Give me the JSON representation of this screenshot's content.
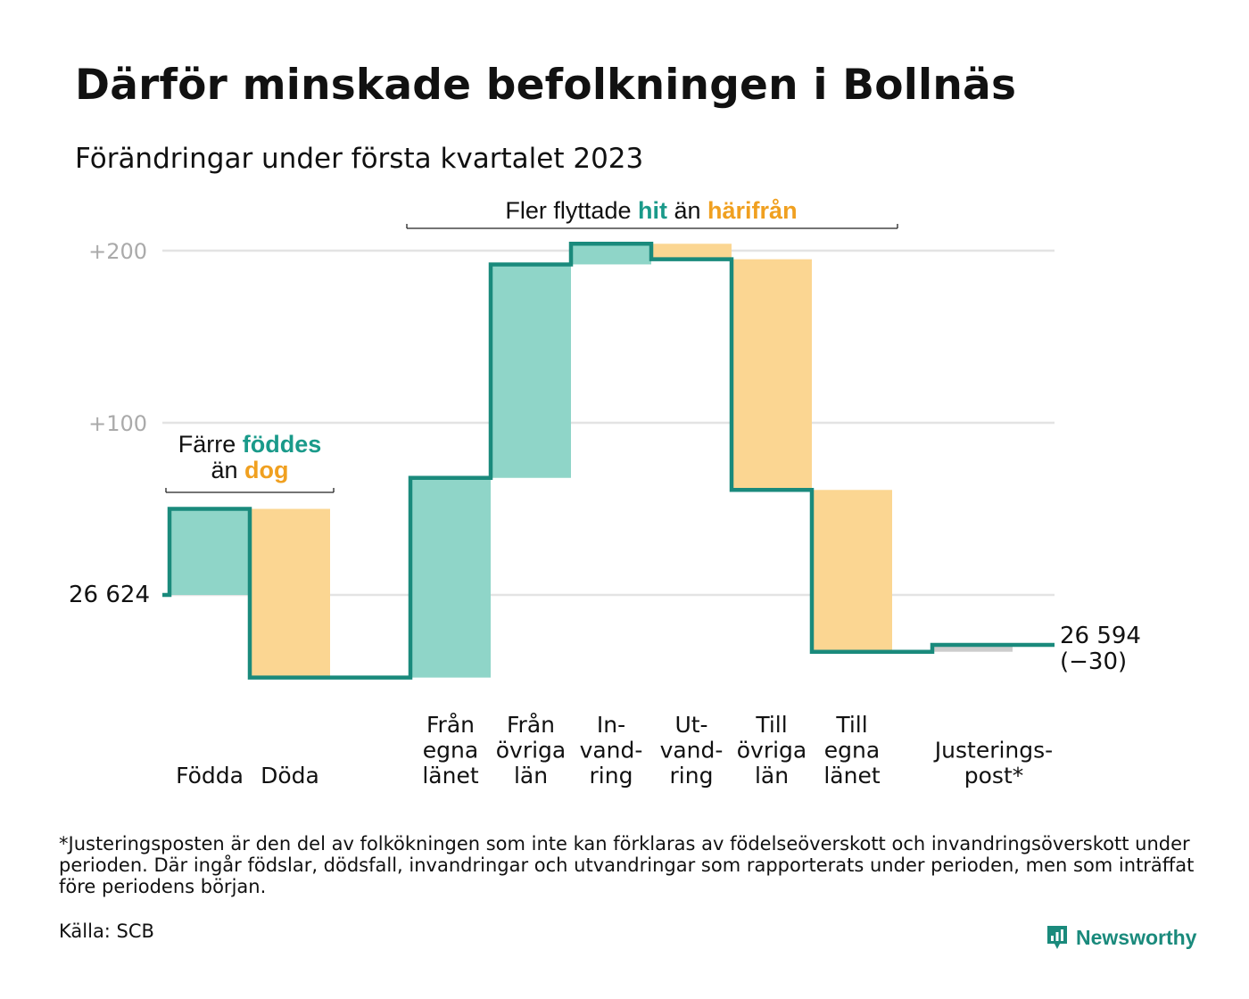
{
  "header": {
    "title": "Därför minskade befolkningen i Bollnäs",
    "subtitle": "Förändringar under första kvartalet 2023"
  },
  "annotations": {
    "births": {
      "line1_pre": "Färre ",
      "line1_hl": "föddes",
      "line2_pre": "än ",
      "line2_hl": "dog"
    },
    "migration": {
      "pre": "Fler flyttade ",
      "hl1": "hit",
      "mid": " än ",
      "hl2": "härifrån"
    }
  },
  "colors": {
    "positive": "#8fd5c8",
    "negative": "#fbd692",
    "line": "#1a8a7c",
    "green_text": "#1a9a8a",
    "orange_text": "#f0a020",
    "adjustment": "#cccccc",
    "grid": "#e3e3e3"
  },
  "chart_data": {
    "type": "waterfall",
    "start": {
      "value": 26624,
      "label": "26 624"
    },
    "end": {
      "value": 26594,
      "label": "26 594",
      "change_label": "(−30)"
    },
    "y_ticks": [
      {
        "value": 200,
        "label": "+200"
      },
      {
        "value": 100,
        "label": "+100"
      }
    ],
    "ylim": [
      -48,
      205
    ],
    "categories": [
      {
        "label_lines": [
          "Födda"
        ],
        "change": 50,
        "type": "increase"
      },
      {
        "label_lines": [
          "Döda"
        ],
        "change": -98,
        "type": "decrease"
      },
      {
        "label_lines": [],
        "change": 0,
        "type": "gap"
      },
      {
        "label_lines": [
          "Från",
          "egna",
          "länet"
        ],
        "change": 116,
        "type": "increase"
      },
      {
        "label_lines": [
          "Från",
          "övriga",
          "län"
        ],
        "change": 124,
        "type": "increase"
      },
      {
        "label_lines": [
          "In-",
          "vand-",
          "ring"
        ],
        "change": 12,
        "type": "increase"
      },
      {
        "label_lines": [
          "Ut-",
          "vand-",
          "ring"
        ],
        "change": -9,
        "type": "decrease"
      },
      {
        "label_lines": [
          "Till",
          "övriga",
          "län"
        ],
        "change": -134,
        "type": "decrease"
      },
      {
        "label_lines": [
          "Till",
          "egna",
          "länet"
        ],
        "change": -94,
        "type": "decrease"
      },
      {
        "label_lines": [],
        "change": 0,
        "type": "gap"
      },
      {
        "label_lines": [
          "Justerings-",
          "post*"
        ],
        "change": 4,
        "type": "adjustment"
      }
    ]
  },
  "footer": {
    "footnote": "*Justeringsposten är den del av folkökningen som inte kan förklaras av födelseöverskott och invandringsöverskott under perioden. Där ingår födslar, dödsfall, invandringar och utvandringar som rapporterats under perioden, men som inträffat före periodens början.",
    "source": "Källa: SCB",
    "brand": "Newsworthy"
  }
}
